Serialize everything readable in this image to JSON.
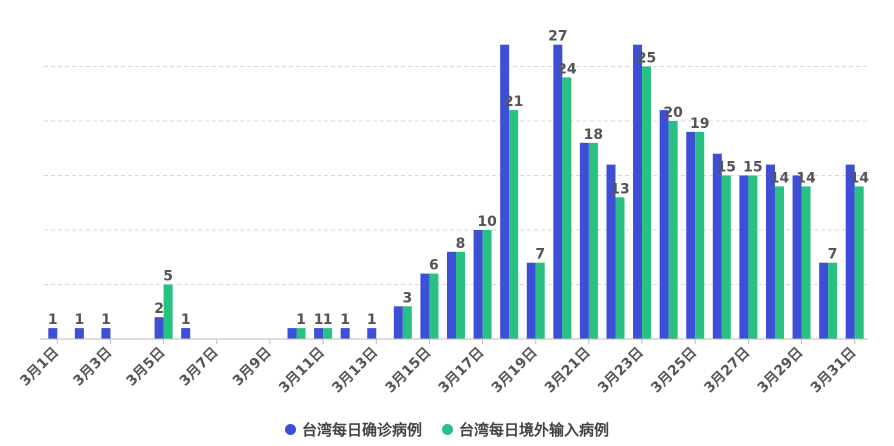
{
  "chart_data": {
    "type": "bar",
    "categories": [
      "3月1日",
      "3月2日",
      "3月3日",
      "3月4日",
      "3月5日",
      "3月6日",
      "3月7日",
      "3月8日",
      "3月9日",
      "3月10日",
      "3月11日",
      "3月12日",
      "3月13日",
      "3月14日",
      "3月15日",
      "3月16日",
      "3月17日",
      "3月18日",
      "3月19日",
      "3月20日",
      "3月21日",
      "3月22日",
      "3月23日",
      "3月24日",
      "3月25日",
      "3月26日",
      "3月27日",
      "3月28日",
      "3月29日",
      "3月30日",
      "3月31日"
    ],
    "x_tick_labels": [
      "3月1日",
      "3月3日",
      "3月5日",
      "3月7日",
      "3月9日",
      "3月11日",
      "3月13日",
      "3月15日",
      "3月17日",
      "3月19日",
      "3月21日",
      "3月23日",
      "3月25日",
      "3月27日",
      "3月29日",
      "3月31日"
    ],
    "series": [
      {
        "name": "台湾每日确诊病例",
        "values": [
          1,
          1,
          1,
          0,
          2,
          1,
          0,
          0,
          0,
          1,
          1,
          1,
          1,
          3,
          6,
          8,
          10,
          27,
          7,
          27,
          18,
          16,
          27,
          21,
          19,
          17,
          15,
          16,
          15,
          7,
          16
        ],
        "labels": [
          "1",
          "1",
          "1",
          "",
          "2",
          "1",
          "",
          "",
          "",
          "",
          "1",
          "1",
          "1",
          "",
          "",
          "",
          "",
          "",
          "",
          "27",
          "",
          "",
          "",
          "",
          "",
          "",
          "",
          "",
          "",
          "",
          ""
        ]
      },
      {
        "name": "台湾每日境外输入病例",
        "values": [
          0,
          0,
          0,
          0,
          5,
          0,
          0,
          0,
          0,
          1,
          1,
          0,
          0,
          3,
          6,
          8,
          10,
          21,
          7,
          24,
          18,
          13,
          25,
          20,
          19,
          15,
          15,
          14,
          14,
          7,
          14
        ],
        "labels": [
          "",
          "",
          "",
          "",
          "5",
          "",
          "",
          "",
          "",
          "1",
          "1",
          "",
          "",
          "3",
          "6",
          "8",
          "10",
          "21",
          "7",
          "24",
          "18",
          "13",
          "25",
          "20",
          "19",
          "15",
          "15",
          "14",
          "14",
          "7",
          "14"
        ]
      }
    ],
    "ylim": [
      0,
      30
    ],
    "grid": true,
    "legend_position": "bottom"
  },
  "colors": {
    "series1": "#3d4fd6",
    "series2": "#27c282",
    "grid": "#d9d9d9",
    "axis": "#555555",
    "label": "#555555"
  }
}
